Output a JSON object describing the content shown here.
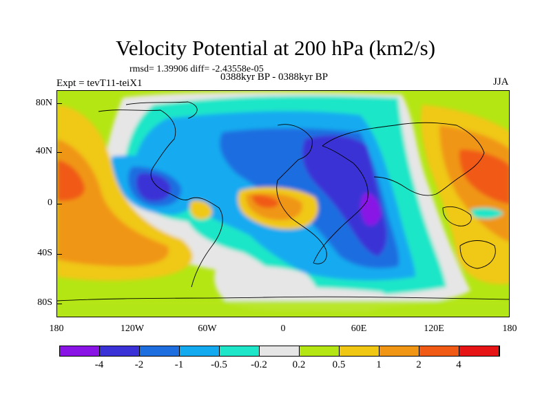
{
  "title": "Velocity Potential at 200 hPa (km2/s)",
  "rmsd_line": "rmsd= 1.39906 diff= -2.43558e-05",
  "experiment": "Expt = tevT11-teiX1",
  "period": "0388kyr BP - 0388kyr BP",
  "season": "JJA",
  "lat_labels": [
    "80N",
    "40N",
    "0",
    "40S",
    "80S"
  ],
  "lon_labels": [
    "180",
    "120W",
    "60W",
    "0",
    "60E",
    "120E",
    "180"
  ],
  "colorbar": {
    "colors": [
      "#8a14e6",
      "#3a32d6",
      "#1e6ee0",
      "#14aaf0",
      "#1ee6c8",
      "#e6e6e6",
      "#b4e614",
      "#f0c814",
      "#f09614",
      "#f05a14",
      "#e61414"
    ],
    "labels": [
      "-4",
      "-2",
      "-1",
      "-0.5",
      "-0.2",
      "0.2",
      "0.5",
      "1",
      "2",
      "4"
    ]
  }
}
